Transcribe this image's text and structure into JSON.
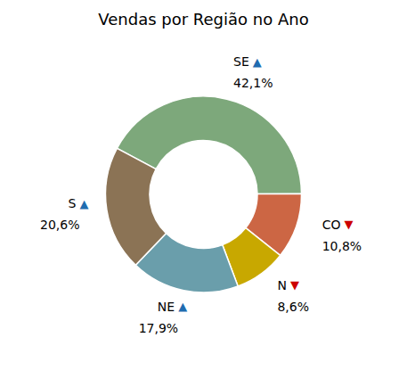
{
  "chart_data": {
    "type": "pie",
    "title": "Vendas por Região no Ano",
    "categories": [
      "SE",
      "CO",
      "N",
      "NE",
      "S"
    ],
    "values": [
      42.1,
      10.8,
      8.6,
      17.9,
      20.6
    ],
    "value_labels": [
      "42,1%",
      "10,8%",
      "8,6%",
      "17,9%",
      "20,6%"
    ],
    "colors": [
      "#7da87b",
      "#cc6644",
      "#c8a800",
      "#6a9eab",
      "#8b7355"
    ],
    "data_labels": true,
    "annotations": [
      {
        "text": "▲",
        "color": "#1f6cb0"
      },
      {
        "text": "▼",
        "color": "#cc0000"
      },
      {
        "text": "▼",
        "color": "#cc0000"
      },
      {
        "text": "▲",
        "color": "#1f6cb0"
      },
      {
        "text": "▲",
        "color": "#1f6cb0"
      }
    ]
  }
}
